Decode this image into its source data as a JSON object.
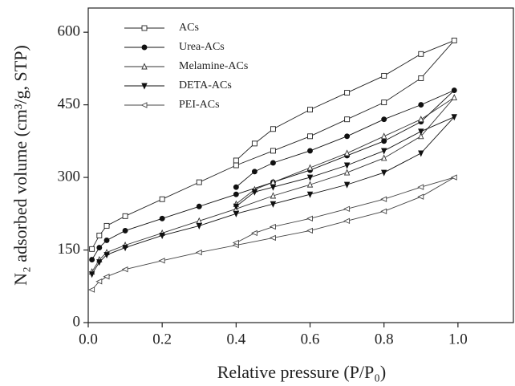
{
  "chart_data": {
    "type": "line",
    "xlabel": "Relative pressure (P/P₀)",
    "ylabel": "N₂ adsorbed volume (cm³/g, STP)",
    "x": [
      0.01,
      0.03,
      0.05,
      0.1,
      0.2,
      0.3,
      0.4,
      0.5,
      0.6,
      0.7,
      0.8,
      0.9,
      0.99,
      0.9,
      0.8,
      0.7,
      0.6,
      0.5,
      0.45,
      0.4
    ],
    "series": [
      {
        "name": "ACs",
        "color": "#222222",
        "marker": "square",
        "filled": false,
        "values": [
          152,
          180,
          200,
          220,
          255,
          290,
          325,
          355,
          385,
          420,
          455,
          505,
          583,
          555,
          510,
          475,
          440,
          400,
          370,
          335
        ]
      },
      {
        "name": "Urea-ACs",
        "color": "#111111",
        "marker": "circle",
        "filled": true,
        "values": [
          130,
          155,
          170,
          190,
          215,
          240,
          265,
          290,
          315,
          345,
          375,
          415,
          480,
          450,
          420,
          385,
          355,
          330,
          312,
          280
        ]
      },
      {
        "name": "Melamine-ACs",
        "color": "#333333",
        "marker": "triangle-up",
        "filled": false,
        "values": [
          105,
          130,
          145,
          160,
          185,
          210,
          235,
          262,
          285,
          310,
          340,
          385,
          465,
          420,
          385,
          350,
          320,
          290,
          275,
          245
        ]
      },
      {
        "name": "DETA-ACs",
        "color": "#111111",
        "marker": "triangle-down",
        "filled": true,
        "values": [
          100,
          125,
          140,
          155,
          180,
          200,
          225,
          245,
          265,
          285,
          310,
          350,
          425,
          395,
          355,
          325,
          300,
          280,
          270,
          240
        ]
      },
      {
        "name": "PEI-ACs",
        "color": "#444444",
        "marker": "triangle-left",
        "filled": false,
        "values": [
          68,
          85,
          95,
          110,
          128,
          145,
          160,
          175,
          190,
          210,
          230,
          260,
          300,
          280,
          255,
          235,
          215,
          198,
          185,
          165
        ]
      }
    ],
    "xlim": [
      0,
      1.15
    ],
    "xticks": [
      {
        "value": 0,
        "label": "0.0"
      },
      0.2,
      0.4,
      0.6,
      0.8,
      {
        "value": 1,
        "label": "1.0"
      }
    ],
    "ylim": [
      0,
      650
    ],
    "yticks": [
      0,
      150,
      300,
      450,
      600
    ],
    "grid": false,
    "legend": "upper left"
  }
}
